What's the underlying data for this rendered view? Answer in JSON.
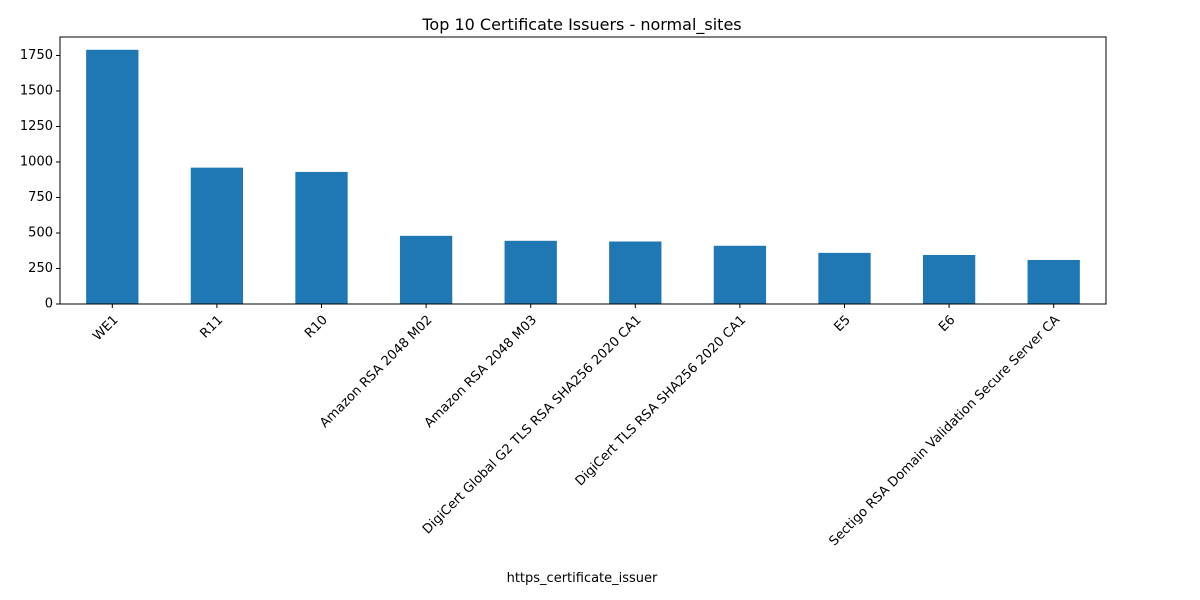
{
  "chart_data": {
    "type": "bar",
    "title": "Top 10 Certificate Issuers - normal_sites",
    "xlabel": "https_certificate_issuer",
    "ylabel": "",
    "categories": [
      "WE1",
      "R11",
      "R10",
      "Amazon RSA 2048 M02",
      "Amazon RSA 2048 M03",
      "DigiCert Global G2 TLS RSA SHA256 2020 CA1",
      "DigiCert TLS RSA SHA256 2020 CA1",
      "E5",
      "E6",
      "Sectigo RSA Domain Validation Secure Server CA"
    ],
    "values": [
      1790,
      960,
      930,
      480,
      445,
      440,
      410,
      360,
      345,
      310
    ],
    "ylim": [
      0,
      1880
    ],
    "yticks": [
      0,
      250,
      500,
      750,
      1000,
      1250,
      1500,
      1750
    ],
    "grid": false,
    "bar_color": "#1f77b4",
    "legend": "none"
  }
}
